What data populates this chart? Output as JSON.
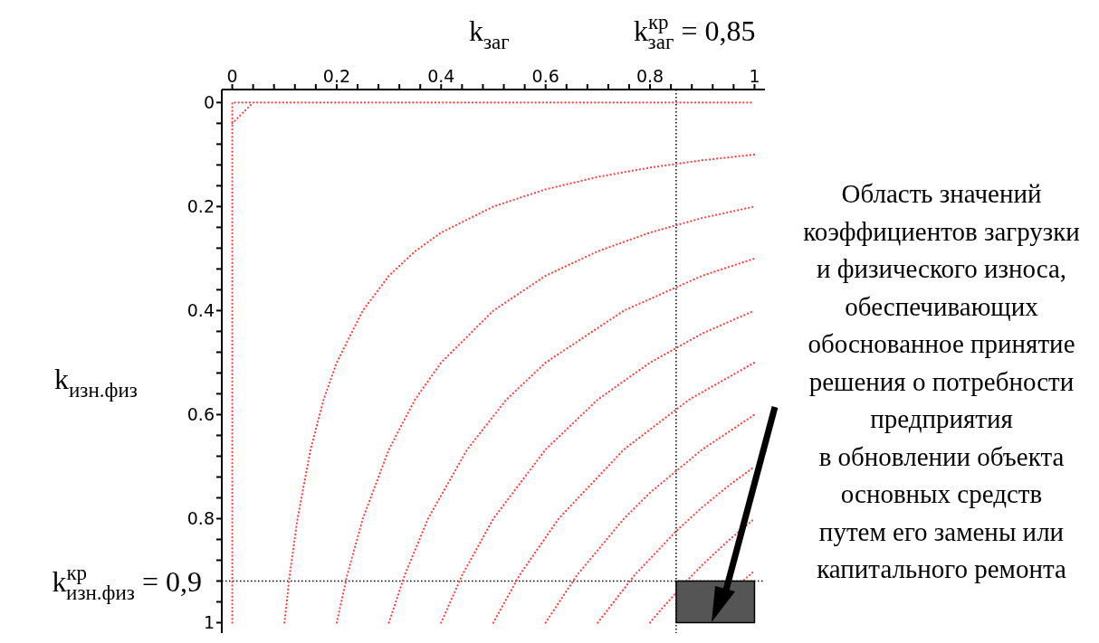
{
  "chart_data": {
    "type": "line",
    "xlabel": "k$_{заг}$",
    "ylabel": "k$_{изн.физ}$",
    "xlim": [
      -0.02,
      1.02
    ],
    "ylim": [
      1.02,
      -0.025
    ],
    "xticks": [
      0,
      {
        "value": 0.04,
        "label": null
      },
      {
        "value": 0.08,
        "label": null
      },
      {
        "value": 0.12,
        "label": null
      },
      {
        "value": 0.16,
        "label": null
      },
      0.2,
      {
        "value": 0.24,
        "label": null
      },
      {
        "value": 0.28,
        "label": null
      },
      {
        "value": 0.32,
        "label": null
      },
      {
        "value": 0.36,
        "label": null
      },
      0.4,
      {
        "value": 0.44,
        "label": null
      },
      {
        "value": 0.48,
        "label": null
      },
      {
        "value": 0.52,
        "label": null
      },
      {
        "value": 0.56,
        "label": null
      },
      0.6,
      {
        "value": 0.64,
        "label": null
      },
      {
        "value": 0.68,
        "label": null
      },
      {
        "value": 0.72,
        "label": null
      },
      {
        "value": 0.76,
        "label": null
      },
      0.8,
      {
        "value": 0.84,
        "label": null
      },
      {
        "value": 0.88,
        "label": null
      },
      {
        "value": 0.92,
        "label": null
      },
      {
        "value": 0.96,
        "label": null
      },
      1
    ],
    "yticks": [
      0,
      {
        "value": 0.04,
        "label": null
      },
      {
        "value": 0.08,
        "label": null
      },
      {
        "value": 0.12,
        "label": null
      },
      {
        "value": 0.16,
        "label": null
      },
      0.2,
      {
        "value": 0.24,
        "label": null
      },
      {
        "value": 0.28,
        "label": null
      },
      {
        "value": 0.32,
        "label": null
      },
      {
        "value": 0.36,
        "label": null
      },
      0.4,
      {
        "value": 0.44,
        "label": null
      },
      {
        "value": 0.48,
        "label": null
      },
      {
        "value": 0.52,
        "label": null
      },
      {
        "value": 0.56,
        "label": null
      },
      0.6,
      {
        "value": 0.64,
        "label": null
      },
      {
        "value": 0.68,
        "label": null
      },
      {
        "value": 0.72,
        "label": null
      },
      {
        "value": 0.76,
        "label": null
      },
      0.8,
      {
        "value": 0.84,
        "label": null
      },
      {
        "value": 0.88,
        "label": null
      },
      {
        "value": 0.92,
        "label": null
      },
      {
        "value": 0.96,
        "label": null
      },
      1
    ],
    "marker": "none",
    "line_style": "dotted",
    "grid": false,
    "series": [
      {
        "color": "#ff4444",
        "x": [
          0,
          0,
          1
        ],
        "values": [
          1,
          0,
          0
        ]
      },
      {
        "color": "#ff4444",
        "x": [
          0,
          0.04
        ],
        "values": [
          0.04,
          0
        ]
      },
      {
        "color": "#ff4444",
        "x": [
          0.1,
          0.11,
          0.125,
          0.15,
          0.175,
          0.2,
          0.25,
          0.3,
          0.35,
          0.4,
          0.5,
          0.6,
          0.7,
          0.8,
          0.9,
          1
        ],
        "values": [
          1,
          0.909,
          0.8,
          0.667,
          0.571,
          0.5,
          0.4,
          0.333,
          0.286,
          0.25,
          0.2,
          0.167,
          0.143,
          0.125,
          0.111,
          0.1
        ]
      },
      {
        "color": "#ff4444",
        "x": [
          0.2,
          0.22,
          0.25,
          0.3,
          0.35,
          0.4,
          0.5,
          0.6,
          0.7,
          0.8,
          0.9,
          1
        ],
        "values": [
          1,
          0.909,
          0.8,
          0.667,
          0.571,
          0.5,
          0.4,
          0.333,
          0.286,
          0.25,
          0.222,
          0.2
        ]
      },
      {
        "color": "#ff4444",
        "x": [
          0.3,
          0.33,
          0.375,
          0.45,
          0.525,
          0.6,
          0.75,
          0.9,
          1
        ],
        "values": [
          1,
          0.909,
          0.8,
          0.667,
          0.571,
          0.5,
          0.4,
          0.333,
          0.3
        ]
      },
      {
        "color": "#ff4444",
        "x": [
          0.4,
          0.44,
          0.5,
          0.6,
          0.7,
          0.8,
          0.9,
          1
        ],
        "values": [
          1,
          0.909,
          0.8,
          0.667,
          0.571,
          0.5,
          0.444,
          0.4
        ]
      },
      {
        "color": "#ff4444",
        "x": [
          0.5,
          0.55,
          0.625,
          0.75,
          0.875,
          1
        ],
        "values": [
          1,
          0.909,
          0.8,
          0.667,
          0.571,
          0.5
        ]
      },
      {
        "color": "#ff4444",
        "x": [
          0.6,
          0.66,
          0.75,
          0.8,
          0.9,
          1
        ],
        "values": [
          1,
          0.909,
          0.8,
          0.75,
          0.667,
          0.6
        ]
      },
      {
        "color": "#ff4444",
        "x": [
          0.7,
          0.77,
          0.85,
          0.9,
          0.95,
          1
        ],
        "values": [
          1,
          0.909,
          0.824,
          0.778,
          0.737,
          0.7
        ]
      },
      {
        "color": "#ff4444",
        "x": [
          0.8,
          0.82,
          0.87,
          0.9,
          0.95,
          1
        ],
        "values": [
          1,
          0.976,
          0.92,
          0.889,
          0.842,
          0.8
        ]
      },
      {
        "color": "#ff4444",
        "x": [
          0.98,
          1
        ],
        "values": [
          0.918,
          0.9
        ]
      }
    ],
    "ref_lines": [
      {
        "axis": "x",
        "value": 0.85,
        "label": "k$^{кр}$$_{заг}$ = 0,85",
        "color": "#000000",
        "line_style": "dotted"
      },
      {
        "axis": "y",
        "value": 0.92,
        "label": "k$^{кр}$$_{изн.физ}$ = 0,9",
        "color": "#000000",
        "line_style": "dotted"
      }
    ],
    "annotations": [
      "Область значений\nкоэффициентов загрузки\nи физического износа,\nобеспечивающих\nобоснованное принятие\nрешения о потребности\nпредприятия\nв обновлении объекта\nосновных средств\nпутем его замены или\nкапитального ремонта"
    ]
  }
}
